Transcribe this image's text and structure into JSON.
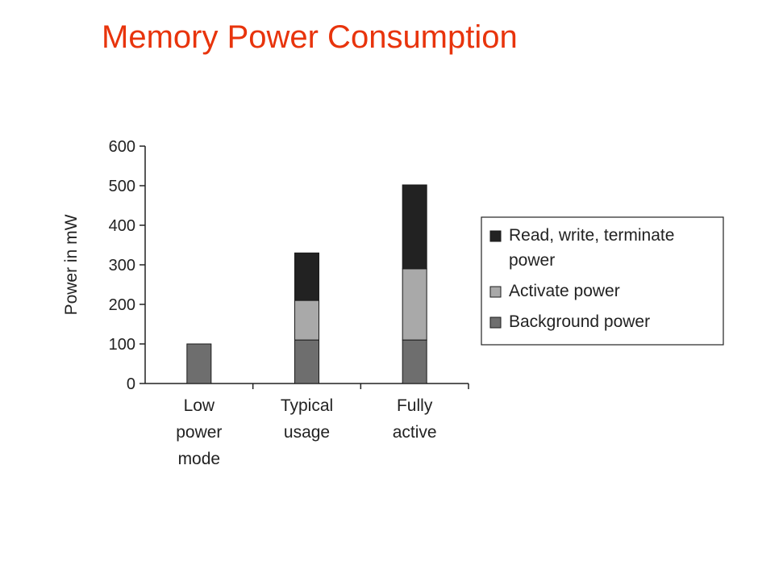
{
  "slide": {
    "title": "Memory Power Consumption"
  },
  "chart_data": {
    "type": "bar",
    "stacked": true,
    "title": "",
    "xlabel": "",
    "ylabel": "Power in mW",
    "ylim": [
      0,
      600
    ],
    "yticks": [
      0,
      100,
      200,
      300,
      400,
      500,
      600
    ],
    "categories": [
      [
        "Low",
        "power",
        "mode"
      ],
      [
        "Typical",
        "usage"
      ],
      [
        "Fully",
        "active"
      ]
    ],
    "series": [
      {
        "name": "Background power",
        "color": "#6e6e6e",
        "values": [
          100,
          110,
          110
        ]
      },
      {
        "name": "Activate power",
        "color": "#a9a9a9",
        "values": [
          0,
          100,
          180
        ]
      },
      {
        "name": "Read, write, terminate power",
        "color": "#222222",
        "values": [
          0,
          120,
          212
        ]
      }
    ],
    "legend": {
      "position": "right",
      "entries": [
        {
          "series": 2,
          "lines": [
            "Read, write, terminate",
            "power"
          ]
        },
        {
          "series": 1,
          "lines": [
            "Activate power"
          ]
        },
        {
          "series": 0,
          "lines": [
            "Background power"
          ]
        }
      ]
    },
    "grid": false
  }
}
